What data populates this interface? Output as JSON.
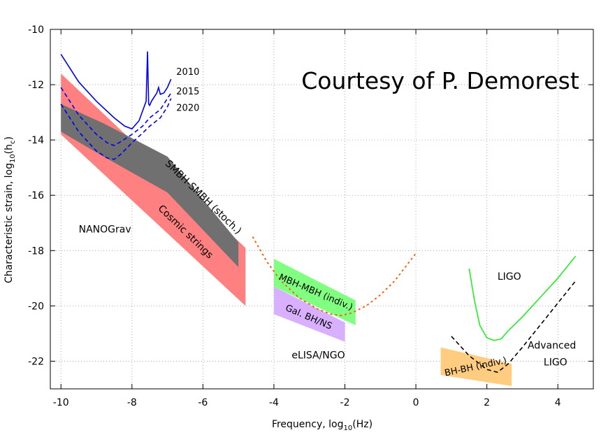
{
  "chart_data": {
    "type": "area",
    "credit": "Courtesy of P. Demorest",
    "xlabel": "Frequency, log",
    "xlabel_sub": "10",
    "xlabel_tail": "(Hz)",
    "ylabel": "Characteristic strain, log",
    "ylabel_sub": "10",
    "ylabel_tail": "(h",
    "ylabel_sub2": "c",
    "ylabel_tail2": ")",
    "xlim": [
      -10.3,
      5
    ],
    "ylim": [
      -23,
      -10
    ],
    "grid": true,
    "x_ticks": [
      -10,
      -8,
      -6,
      -4,
      -2,
      0,
      2,
      4
    ],
    "x_tick_labels": [
      "-10",
      "-8",
      "-6",
      "-4",
      "-2",
      "0",
      "2",
      "4"
    ],
    "y_ticks": [
      -10,
      -12,
      -14,
      -16,
      -18,
      -20,
      -22
    ],
    "y_tick_labels": [
      "-10",
      "-12",
      "-14",
      "-16",
      "-18",
      "-20",
      "-22"
    ],
    "colors": {
      "cosmic": "#ff8080",
      "smbh": "#707070",
      "mbh": "#80ff80",
      "gal": "#d8b0ff",
      "bhbh": "#ffcc80",
      "nanograv": "#0000ee",
      "elisa": "#ff5500",
      "ligo": "#22ee22",
      "adv_ligo": "#000000"
    },
    "regions": [
      {
        "id": "cosmic",
        "label": "Cosmic strings",
        "points": [
          [
            -10,
            -11.6
          ],
          [
            -4.8,
            -17.9
          ],
          [
            -4.8,
            -20
          ],
          [
            -10,
            -13.8
          ]
        ]
      },
      {
        "id": "smbh",
        "label": "SMBH-SMBH (stoch.)",
        "points": [
          [
            -10,
            -12.7
          ],
          [
            -8.8,
            -13.4
          ],
          [
            -7,
            -14.6
          ],
          [
            -5,
            -17.7
          ],
          [
            -5,
            -18.6
          ],
          [
            -7,
            -15.9
          ],
          [
            -8.8,
            -14.6
          ],
          [
            -10,
            -13.7
          ]
        ]
      },
      {
        "id": "mbh",
        "label": "MBH-MBH (indiv.)",
        "points": [
          [
            -4,
            -18.3
          ],
          [
            -1.7,
            -19.8
          ],
          [
            -1.7,
            -20.7
          ],
          [
            -4,
            -19.3
          ]
        ]
      },
      {
        "id": "gal",
        "label": "Gal. BH/NS",
        "points": [
          [
            -4,
            -19.3
          ],
          [
            -2,
            -20.6
          ],
          [
            -2,
            -21.3
          ],
          [
            -4,
            -20.3
          ]
        ]
      },
      {
        "id": "bhbh",
        "label": "BH-BH (indiv.)",
        "points": [
          [
            0.7,
            -21.5
          ],
          [
            2.7,
            -22.1
          ],
          [
            2.7,
            -22.9
          ],
          [
            0.7,
            -22.5
          ]
        ]
      }
    ],
    "series": [
      {
        "id": "nanograv_2010",
        "name": "2010",
        "style": "solid",
        "x": [
          -10,
          -9.5,
          -9,
          -8.5,
          -8.2,
          -8,
          -7.8,
          -7.6,
          -7.56,
          -7.53,
          -7.5,
          -7.45,
          -7.3,
          -7.25,
          -7.2,
          -7.1,
          -7,
          -6.9
        ],
        "y": [
          -10.9,
          -11.9,
          -12.6,
          -13.2,
          -13.5,
          -13.6,
          -13.3,
          -12.6,
          -10.8,
          -12.7,
          -12.75,
          -12.6,
          -12.3,
          -12.1,
          -12.35,
          -12.3,
          -12.1,
          -11.8
        ]
      },
      {
        "id": "nanograv_2015",
        "name": "2015",
        "style": "dashed",
        "x": [
          -10,
          -9.5,
          -9,
          -8.7,
          -8.5,
          -8.3,
          -8,
          -7.7,
          -7.5,
          -7.2,
          -7,
          -6.9
        ],
        "y": [
          -12.1,
          -13.1,
          -13.8,
          -14.1,
          -14.2,
          -14.05,
          -13.8,
          -13.5,
          -13.2,
          -12.9,
          -12.5,
          -12.3
        ]
      },
      {
        "id": "nanograv_2020",
        "name": "2020",
        "style": "dashed",
        "x": [
          -10,
          -9.5,
          -9,
          -8.7,
          -8.5,
          -8.3,
          -8,
          -7.7,
          -7.5,
          -7.2,
          -7,
          -6.9
        ],
        "y": [
          -12.7,
          -13.7,
          -14.4,
          -14.65,
          -14.7,
          -14.5,
          -14.1,
          -13.75,
          -13.5,
          -13.2,
          -12.8,
          -12.5
        ]
      },
      {
        "id": "elisa",
        "name": "eLISA/NGO",
        "style": "dotted",
        "x": [
          -4.6,
          -4.2,
          -3.8,
          -3.3,
          -2.8,
          -2.4,
          -2.1,
          -1.8,
          -1.4,
          -1,
          -0.6,
          -0.3,
          0
        ],
        "y": [
          -17.5,
          -18.4,
          -19.1,
          -19.7,
          -20.1,
          -20.3,
          -20.35,
          -20.25,
          -20.0,
          -19.6,
          -19.1,
          -18.6,
          -18.1
        ]
      },
      {
        "id": "ligo",
        "name": "LIGO",
        "style": "solid",
        "x": [
          1.5,
          1.65,
          1.8,
          2,
          2.2,
          2.4,
          2.6,
          3,
          3.5,
          4,
          4.5
        ],
        "y": [
          -18.65,
          -19.8,
          -20.7,
          -21.15,
          -21.25,
          -21.2,
          -20.9,
          -20.4,
          -19.7,
          -19,
          -18.2
        ]
      },
      {
        "id": "adv_ligo",
        "name": "Advanced LIGO",
        "style": "dashed",
        "x": [
          1,
          1.5,
          2,
          2.3,
          2.6,
          3,
          3.5,
          4,
          4.5
        ],
        "y": [
          -21.1,
          -21.8,
          -22.3,
          -22.4,
          -22.1,
          -21.5,
          -20.7,
          -19.9,
          -19.1
        ]
      }
    ],
    "annotations": [
      {
        "id": "nanograv",
        "text": "NANOGrav"
      },
      {
        "id": "elisa",
        "text": "eLISA/NGO"
      },
      {
        "id": "ligo",
        "text": "LIGO"
      },
      {
        "id": "adv_ligo_1",
        "text": "Advanced"
      },
      {
        "id": "adv_ligo_2",
        "text": "LIGO"
      }
    ]
  }
}
